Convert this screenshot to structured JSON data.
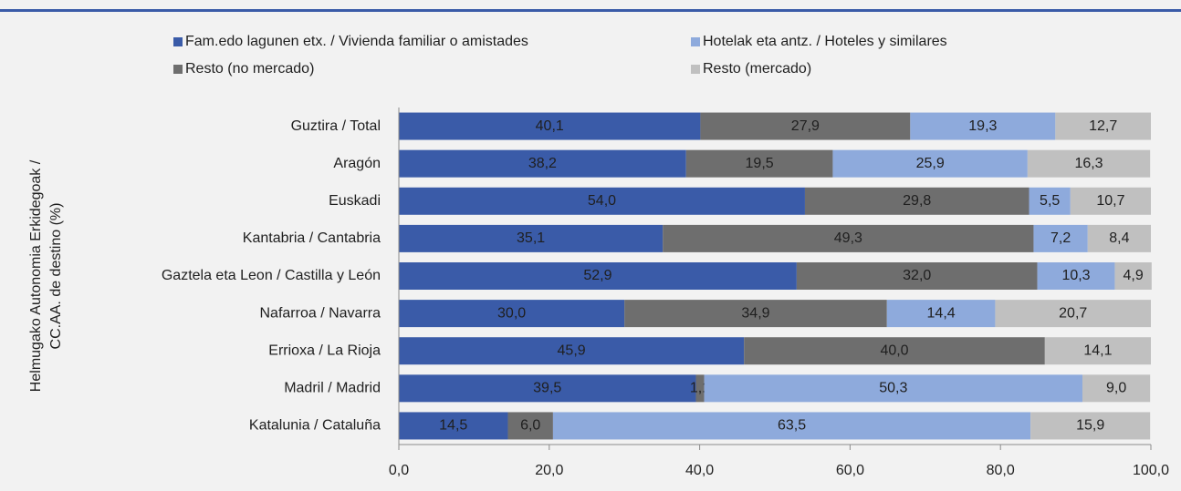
{
  "chart_data": {
    "type": "stacked_bar_horizontal",
    "categories": [
      "Guztira / Total",
      "Aragón",
      "Euskadi",
      "Kantabria / Cantabria",
      "Gaztela eta Leon / Castilla y León",
      "Nafarroa / Navarra",
      "Errioxa / La Rioja",
      "Madril / Madrid",
      "Katalunia / Cataluña"
    ],
    "series": [
      {
        "name": "Fam.edo lagunen etx. / Vivienda familiar o amistades",
        "color": "#3a5ba8",
        "values": [
          40.1,
          38.2,
          54.0,
          35.1,
          52.9,
          30.0,
          45.9,
          39.5,
          14.5
        ],
        "value_labels": [
          "40,1",
          "38,2",
          "54,0",
          "35,1",
          "52,9",
          "30,0",
          "45,9",
          "39,5",
          "14,5"
        ]
      },
      {
        "name": "Resto (no mercado)",
        "color": "#6e6e6e",
        "values": [
          27.9,
          19.5,
          29.8,
          49.3,
          32.0,
          34.9,
          40.0,
          1.1,
          6.0
        ],
        "value_labels": [
          "27,9",
          "19,5",
          "29,8",
          "49,3",
          "32,0",
          "34,9",
          "40,0",
          "1,1",
          "6,0"
        ]
      },
      {
        "name": "Hotelak eta antz. / Hoteles y similares",
        "color": "#8eaadc",
        "values": [
          19.3,
          25.9,
          5.5,
          7.2,
          10.3,
          14.4,
          null,
          50.3,
          63.5
        ],
        "value_labels": [
          "19,3",
          "25,9",
          "5,5",
          "7,2",
          "10,3",
          "14,4",
          null,
          "50,3",
          "63,5"
        ]
      },
      {
        "name": "Resto (mercado)",
        "color": "#c0c0c0",
        "values": [
          12.7,
          16.3,
          10.7,
          8.4,
          4.9,
          20.7,
          14.1,
          9.0,
          15.9
        ],
        "value_labels": [
          "12,7",
          "16,3",
          "10,7",
          "8,4",
          "4,9",
          "20,7",
          "14,1",
          "9,0",
          "15,9"
        ]
      }
    ],
    "y_label": [
      "Helmugako Autonomia Erkidegoak /",
      "CC.AA. de destino (%)"
    ],
    "xlim": [
      0,
      100
    ],
    "xticks": [
      {
        "value": 0,
        "label": "0,0"
      },
      {
        "value": 20,
        "label": "20,0"
      },
      {
        "value": 40,
        "label": "40,0"
      },
      {
        "value": 60,
        "label": "60,0"
      },
      {
        "value": 80,
        "label": "80,0"
      },
      {
        "value": 100,
        "label": "100,0"
      }
    ]
  }
}
